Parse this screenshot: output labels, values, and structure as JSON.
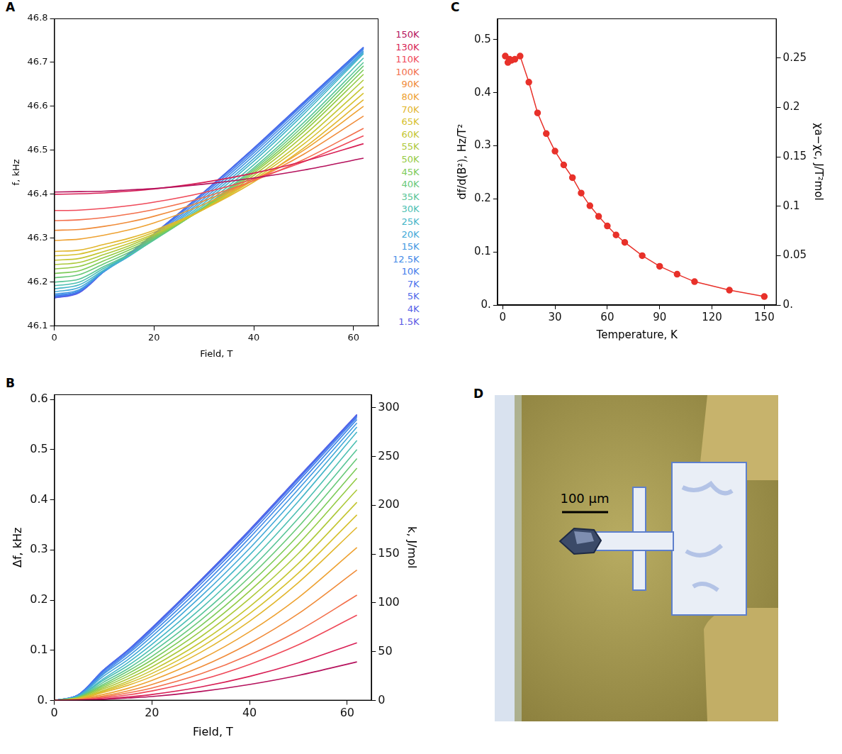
{
  "chart_data": [
    {
      "type": "line",
      "panel_label": "A",
      "xlabel": "Field, T",
      "ylabel": "f, kHz",
      "x": [
        0,
        5,
        10,
        15,
        20,
        30,
        40,
        50,
        62
      ],
      "xlim": [
        0,
        65
      ],
      "xticks": [
        0,
        20,
        40,
        60
      ],
      "ylim": [
        46.1,
        46.8
      ],
      "yticks": [
        46.1,
        46.2,
        46.3,
        46.4,
        46.5,
        46.6,
        46.7,
        46.8
      ],
      "grid": false,
      "legend": "right",
      "series": [
        {
          "name": "150K",
          "color": "#b5115c",
          "values": [
            46.405,
            46.406,
            46.407,
            46.41,
            46.413,
            46.423,
            46.437,
            46.455,
            46.482
          ]
        },
        {
          "name": "130K",
          "color": "#d81f55",
          "values": [
            46.4,
            46.401,
            46.403,
            46.407,
            46.412,
            46.427,
            46.448,
            46.475,
            46.515
          ]
        },
        {
          "name": "110K",
          "color": "#ef4a5a",
          "values": [
            46.363,
            46.364,
            46.368,
            46.374,
            46.382,
            46.404,
            46.435,
            46.474,
            46.533
          ]
        },
        {
          "name": "100K",
          "color": "#f3704c",
          "values": [
            46.34,
            46.342,
            46.347,
            46.355,
            46.365,
            46.393,
            46.431,
            46.479,
            46.55
          ]
        },
        {
          "name": "90K",
          "color": "#f08c3a",
          "values": [
            46.318,
            46.32,
            46.327,
            46.337,
            46.35,
            46.385,
            46.432,
            46.491,
            46.578
          ]
        },
        {
          "name": "80K",
          "color": "#eea232",
          "values": [
            46.295,
            46.298,
            46.307,
            46.319,
            46.335,
            46.377,
            46.432,
            46.5,
            46.6
          ]
        },
        {
          "name": "70K",
          "color": "#e2b62e",
          "values": [
            46.27,
            46.273,
            46.286,
            46.3,
            46.318,
            46.366,
            46.428,
            46.505,
            46.615
          ]
        },
        {
          "name": "65K",
          "color": "#d6c12e",
          "values": [
            46.26,
            46.264,
            46.278,
            46.294,
            46.314,
            46.366,
            46.433,
            46.514,
            46.63
          ]
        },
        {
          "name": "60K",
          "color": "#c4c632",
          "values": [
            46.25,
            46.254,
            46.27,
            46.288,
            46.31,
            46.366,
            46.437,
            46.523,
            46.645
          ]
        },
        {
          "name": "55K",
          "color": "#adc93a",
          "values": [
            46.24,
            46.245,
            46.263,
            46.283,
            46.307,
            46.367,
            46.443,
            46.533,
            46.66
          ]
        },
        {
          "name": "50K",
          "color": "#94cb45",
          "values": [
            46.23,
            46.236,
            46.256,
            46.278,
            46.304,
            46.368,
            46.448,
            46.542,
            46.673
          ]
        },
        {
          "name": "45K",
          "color": "#7ccb58",
          "values": [
            46.22,
            46.226,
            46.249,
            46.273,
            46.301,
            46.369,
            46.452,
            46.549,
            46.683
          ]
        },
        {
          "name": "40K",
          "color": "#68c978",
          "values": [
            46.21,
            46.217,
            46.242,
            46.268,
            46.298,
            46.37,
            46.456,
            46.556,
            46.692
          ]
        },
        {
          "name": "35K",
          "color": "#58c596",
          "values": [
            46.2,
            46.207,
            46.236,
            46.263,
            46.296,
            46.371,
            46.46,
            46.563,
            46.7
          ]
        },
        {
          "name": "30K",
          "color": "#4cbfb2",
          "values": [
            46.192,
            46.2,
            46.232,
            46.261,
            46.296,
            46.375,
            46.467,
            46.572,
            46.71
          ]
        },
        {
          "name": "25K",
          "color": "#45b6c8",
          "values": [
            46.185,
            46.194,
            46.228,
            46.26,
            46.297,
            46.38,
            46.475,
            46.582,
            46.72
          ]
        },
        {
          "name": "20K",
          "color": "#42a9d8",
          "values": [
            46.178,
            46.188,
            46.226,
            46.259,
            46.298,
            46.385,
            46.481,
            46.588,
            46.723
          ]
        },
        {
          "name": "15K",
          "color": "#4299e2",
          "values": [
            46.173,
            46.183,
            46.225,
            46.26,
            46.301,
            46.39,
            46.488,
            46.594,
            46.726
          ]
        },
        {
          "name": "12.5K",
          "color": "#438ae8",
          "values": [
            46.17,
            46.181,
            46.224,
            46.262,
            46.304,
            46.395,
            46.494,
            46.6,
            46.73
          ]
        },
        {
          "name": "10K",
          "color": "#447deb",
          "values": [
            46.168,
            46.179,
            46.225,
            46.263,
            46.307,
            46.4,
            46.499,
            46.605,
            46.732
          ]
        },
        {
          "name": "7K",
          "color": "#4872ec",
          "values": [
            46.167,
            46.179,
            46.226,
            46.265,
            46.309,
            46.404,
            46.503,
            46.608,
            46.734
          ]
        },
        {
          "name": "5K",
          "color": "#4d68ea",
          "values": [
            46.166,
            46.178,
            46.226,
            46.265,
            46.31,
            46.405,
            46.505,
            46.61,
            46.734
          ]
        },
        {
          "name": "4K",
          "color": "#5260e8",
          "values": [
            46.165,
            46.177,
            46.225,
            46.265,
            46.31,
            46.405,
            46.504,
            46.609,
            46.734
          ]
        },
        {
          "name": "1.5K",
          "color": "#5a58e4",
          "values": [
            46.164,
            46.176,
            46.224,
            46.264,
            46.309,
            46.404,
            46.504,
            46.609,
            46.734
          ]
        }
      ]
    },
    {
      "type": "line",
      "panel_label": "B",
      "xlabel": "Field, T",
      "ylabel": "Δf, kHz",
      "y2label": "k, J/mol",
      "x": [
        0,
        5,
        10,
        15,
        20,
        30,
        40,
        50,
        62
      ],
      "xlim": [
        0,
        65
      ],
      "xticks": [
        0,
        20,
        40,
        60
      ],
      "ylim": [
        0,
        0.61
      ],
      "yticks": [
        {
          "value": 0,
          "label": "0."
        },
        0.1,
        0.2,
        0.3,
        0.4,
        0.5,
        0.6
      ],
      "y2lim": [
        0,
        313.5
      ],
      "y2ticks": [
        0,
        50,
        100,
        150,
        200,
        250,
        300
      ],
      "grid": false,
      "series": [
        {
          "color": "#b5115c",
          "values": [
            0,
            0.001,
            0.002,
            0.005,
            0.008,
            0.018,
            0.032,
            0.05,
            0.077
          ]
        },
        {
          "color": "#d81f55",
          "values": [
            0,
            0.001,
            0.003,
            0.007,
            0.012,
            0.027,
            0.048,
            0.075,
            0.115
          ]
        },
        {
          "color": "#ef4a5a",
          "values": [
            0,
            0.001,
            0.005,
            0.011,
            0.019,
            0.041,
            0.072,
            0.111,
            0.17
          ]
        },
        {
          "color": "#f3704c",
          "values": [
            0,
            0.002,
            0.007,
            0.015,
            0.025,
            0.053,
            0.091,
            0.139,
            0.21
          ]
        },
        {
          "color": "#f08c3a",
          "values": [
            0,
            0.002,
            0.009,
            0.019,
            0.032,
            0.067,
            0.114,
            0.173,
            0.26
          ]
        },
        {
          "color": "#eea232",
          "values": [
            0,
            0.003,
            0.012,
            0.024,
            0.04,
            0.082,
            0.137,
            0.205,
            0.305
          ]
        },
        {
          "color": "#e2b62e",
          "values": [
            0,
            0.003,
            0.016,
            0.03,
            0.048,
            0.096,
            0.158,
            0.235,
            0.345
          ]
        },
        {
          "color": "#d6c12e",
          "values": [
            0,
            0.004,
            0.018,
            0.034,
            0.054,
            0.106,
            0.173,
            0.254,
            0.37
          ]
        },
        {
          "color": "#c4c632",
          "values": [
            0,
            0.004,
            0.02,
            0.038,
            0.06,
            0.116,
            0.187,
            0.273,
            0.395
          ]
        },
        {
          "color": "#adc93a",
          "values": [
            0,
            0.005,
            0.023,
            0.043,
            0.067,
            0.127,
            0.203,
            0.293,
            0.42
          ]
        },
        {
          "color": "#94cb45",
          "values": [
            0,
            0.006,
            0.026,
            0.048,
            0.074,
            0.138,
            0.218,
            0.312,
            0.443
          ]
        },
        {
          "color": "#7ccb58",
          "values": [
            0,
            0.006,
            0.029,
            0.053,
            0.081,
            0.149,
            0.232,
            0.329,
            0.463
          ]
        },
        {
          "color": "#68c978",
          "values": [
            0,
            0.007,
            0.032,
            0.058,
            0.088,
            0.16,
            0.246,
            0.346,
            0.482
          ]
        },
        {
          "color": "#58c596",
          "values": [
            0,
            0.007,
            0.036,
            0.063,
            0.096,
            0.171,
            0.26,
            0.363,
            0.5
          ]
        },
        {
          "color": "#4cbfb2",
          "values": [
            0,
            0.008,
            0.04,
            0.069,
            0.104,
            0.183,
            0.275,
            0.38,
            0.518
          ]
        },
        {
          "color": "#45b6c8",
          "values": [
            0,
            0.009,
            0.043,
            0.075,
            0.112,
            0.195,
            0.29,
            0.397,
            0.535
          ]
        },
        {
          "color": "#42a9d8",
          "values": [
            0,
            0.01,
            0.048,
            0.081,
            0.12,
            0.207,
            0.303,
            0.41,
            0.545
          ]
        },
        {
          "color": "#4299e2",
          "values": [
            0,
            0.01,
            0.052,
            0.087,
            0.128,
            0.217,
            0.315,
            0.421,
            0.553
          ]
        },
        {
          "color": "#438ae8",
          "values": [
            0,
            0.011,
            0.054,
            0.092,
            0.134,
            0.225,
            0.324,
            0.43,
            0.56
          ]
        },
        {
          "color": "#447deb",
          "values": [
            0,
            0.011,
            0.057,
            0.095,
            0.139,
            0.232,
            0.331,
            0.437,
            0.564
          ]
        },
        {
          "color": "#4872ec",
          "values": [
            0,
            0.012,
            0.059,
            0.098,
            0.142,
            0.237,
            0.336,
            0.441,
            0.567
          ]
        },
        {
          "color": "#4d68ea",
          "values": [
            0,
            0.012,
            0.06,
            0.099,
            0.144,
            0.239,
            0.339,
            0.444,
            0.568
          ]
        },
        {
          "color": "#5260e8",
          "values": [
            0,
            0.012,
            0.06,
            0.1,
            0.145,
            0.24,
            0.339,
            0.444,
            0.569
          ]
        },
        {
          "color": "#5a58e4",
          "values": [
            0,
            0.012,
            0.06,
            0.1,
            0.145,
            0.24,
            0.34,
            0.445,
            0.57
          ]
        }
      ]
    },
    {
      "type": "line",
      "panel_label": "C",
      "xlabel": "Temperature, K",
      "ylabel": "df/d(B²), Hz/T²",
      "y2label": "χa−χc, J/T²mol",
      "x": [
        1.5,
        3,
        4,
        5,
        7,
        10,
        15,
        20,
        25,
        30,
        35,
        40,
        45,
        50,
        55,
        60,
        65,
        70,
        80,
        90,
        100,
        110,
        130,
        150
      ],
      "xlim": [
        -3,
        157
      ],
      "xticks": [
        0,
        30,
        60,
        90,
        120,
        150
      ],
      "ylim": [
        0,
        0.54
      ],
      "yticks": [
        {
          "value": 0,
          "label": "0."
        },
        0.1,
        0.2,
        0.3,
        0.4,
        0.5
      ],
      "y2lim": [
        0,
        0.29
      ],
      "y2ticks": [
        {
          "value": 0,
          "label": "0."
        },
        0.05,
        0.1,
        0.15,
        0.2,
        0.25
      ],
      "grid": false,
      "series": [
        {
          "color": "#e8312a",
          "marker": "circle",
          "values": [
            0.469,
            0.457,
            0.463,
            0.461,
            0.463,
            0.469,
            0.42,
            0.362,
            0.323,
            0.29,
            0.264,
            0.24,
            0.211,
            0.187,
            0.167,
            0.149,
            0.132,
            0.118,
            0.093,
            0.073,
            0.058,
            0.044,
            0.028,
            0.016
          ]
        }
      ]
    },
    {
      "type": "image",
      "panel_label": "D",
      "annotations": [
        "100 µm"
      ]
    }
  ]
}
